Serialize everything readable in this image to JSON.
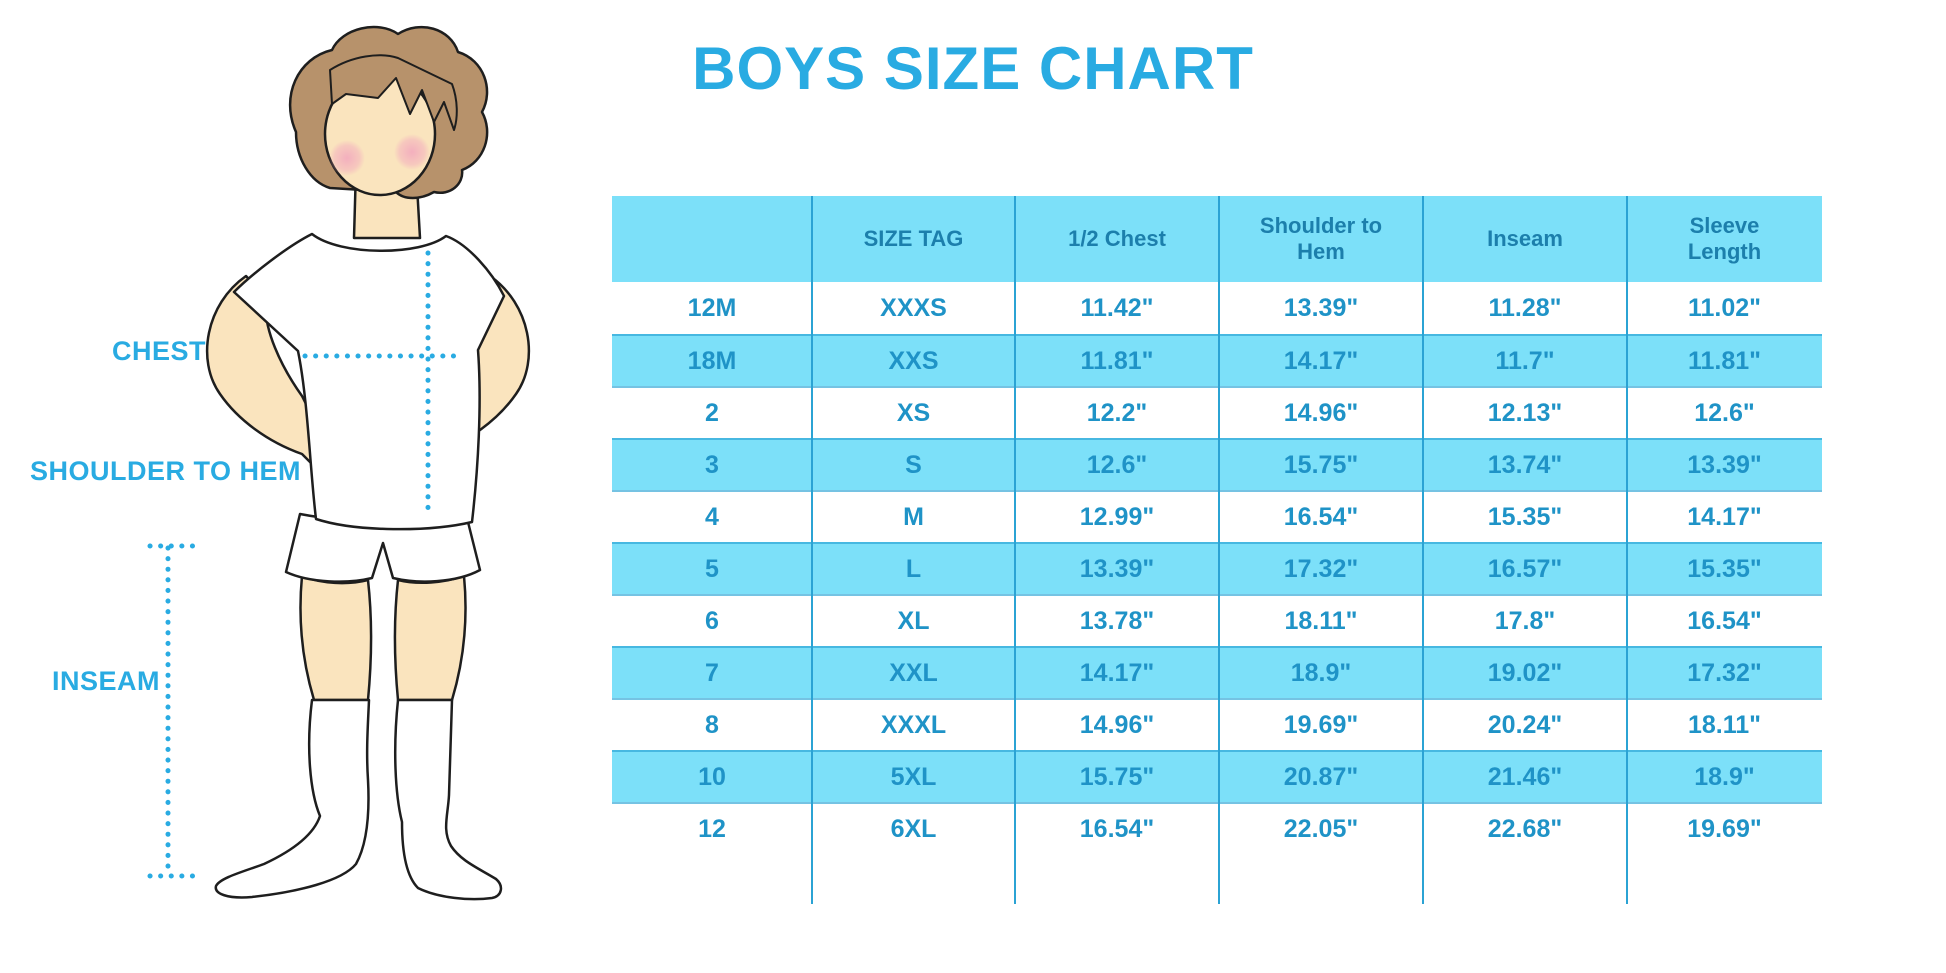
{
  "title": "BOYS SIZE CHART",
  "figure": {
    "illustration": "boy-standing-in-tshirt-shorts-and-knee-socks",
    "labels": {
      "chest": "CHEST",
      "shoulder_to_hem": "SHOULDER TO HEM",
      "inseam": "INSEAM"
    }
  },
  "colors": {
    "accent_blue": "#29ABE2",
    "table_stripe": "#7CE0F9",
    "divider_blue": "#2BA3D4",
    "header_text": "#1C7FAC",
    "cell_text": "#1F93C7",
    "skin": "#FAE4BE",
    "hair": "#B7926B",
    "cheek_pink": "#F2A6BE"
  },
  "table": {
    "columns": [
      "",
      "SIZE TAG",
      "1/2 Chest",
      "Shoulder to Hem",
      "Inseam",
      "Sleeve Length"
    ],
    "rows": [
      [
        "12M",
        "XXXS",
        "11.42\"",
        "13.39\"",
        "11.28\"",
        "11.02\""
      ],
      [
        "18M",
        "XXS",
        "11.81\"",
        "14.17\"",
        "11.7\"",
        "11.81\""
      ],
      [
        "2",
        "XS",
        "12.2\"",
        "14.96\"",
        "12.13\"",
        "12.6\""
      ],
      [
        "3",
        "S",
        "12.6\"",
        "15.75\"",
        "13.74\"",
        "13.39\""
      ],
      [
        "4",
        "M",
        "12.99\"",
        "16.54\"",
        "15.35\"",
        "14.17\""
      ],
      [
        "5",
        "L",
        "13.39\"",
        "17.32\"",
        "16.57\"",
        "15.35\""
      ],
      [
        "6",
        "XL",
        "13.78\"",
        "18.11\"",
        "17.8\"",
        "16.54\""
      ],
      [
        "7",
        "XXL",
        "14.17\"",
        "18.9\"",
        "19.02\"",
        "17.32\""
      ],
      [
        "8",
        "XXXL",
        "14.96\"",
        "19.69\"",
        "20.24\"",
        "18.11\""
      ],
      [
        "10",
        "5XL",
        "15.75\"",
        "20.87\"",
        "21.46\"",
        "18.9\""
      ],
      [
        "12",
        "6XL",
        "16.54\"",
        "22.05\"",
        "22.68\"",
        "19.69\""
      ]
    ]
  }
}
